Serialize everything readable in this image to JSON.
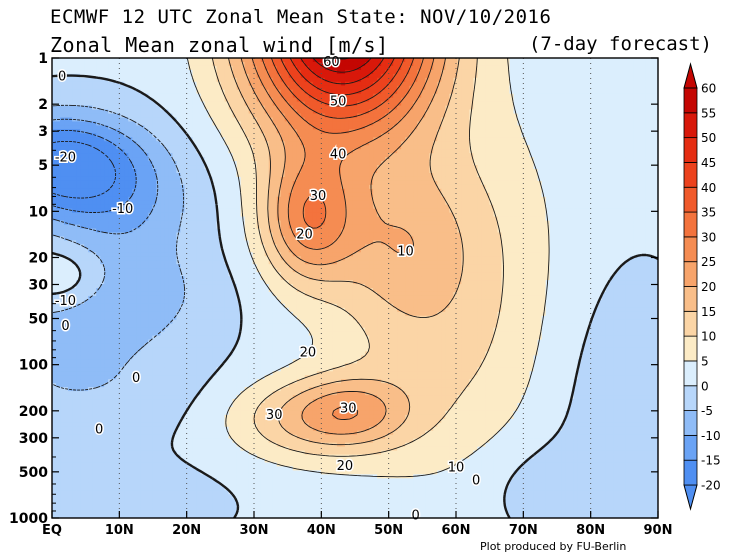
{
  "header": {
    "title_line1": "ECMWF 12 UTC Zonal Mean State: NOV/10/2016",
    "title_line2": "Zonal Mean zonal wind [m/s]",
    "forecast_label": "(7-day forecast)"
  },
  "footer": {
    "credit": "Plot produced by FU-Berlin"
  },
  "chart_data": {
    "type": "heatmap",
    "title": "Zonal Mean zonal wind [m/s]",
    "xlabel": "",
    "ylabel": "",
    "x_ticks": [
      "EQ",
      "10N",
      "20N",
      "30N",
      "40N",
      "50N",
      "60N",
      "70N",
      "80N",
      "90N"
    ],
    "x_values": [
      0,
      10,
      20,
      30,
      40,
      50,
      60,
      70,
      80,
      90
    ],
    "y_ticks": [
      "1",
      "2",
      "3",
      "5",
      "10",
      "20",
      "30",
      "50",
      "100",
      "200",
      "300",
      "500",
      "1000"
    ],
    "y_values": [
      1,
      2,
      3,
      5,
      10,
      20,
      30,
      50,
      100,
      200,
      300,
      500,
      1000
    ],
    "y_scale": "log",
    "y_inverted": true,
    "xlim": [
      0,
      90
    ],
    "ylim": [
      1,
      1000
    ],
    "grid": "dotted vertical lines at 10-degree intervals",
    "colorbar": {
      "levels": [
        -20,
        -15,
        -10,
        -5,
        0,
        5,
        10,
        15,
        20,
        25,
        30,
        35,
        40,
        45,
        50,
        55,
        60
      ],
      "labels": [
        "-20",
        "-15",
        "-10",
        "-5",
        "0",
        "5",
        "10",
        "15",
        "20",
        "25",
        "30",
        "35",
        "40",
        "45",
        "50",
        "55",
        "60"
      ],
      "colors": [
        "#4f8ff2",
        "#6aa3f5",
        "#8fbcf7",
        "#b7d6fa",
        "#dbeefd",
        "#fcebc6",
        "#fbd5a6",
        "#f9be89",
        "#f7a46b",
        "#f58c52",
        "#f3733d",
        "#f05a2b",
        "#ec421d",
        "#e52d12",
        "#d8180a",
        "#c40602"
      ],
      "position": "right"
    },
    "contour_labels": [
      {
        "text": "60",
        "lat": 41.5,
        "p": 1.05
      },
      {
        "text": "50",
        "lat": 42.5,
        "p": 1.9
      },
      {
        "text": "40",
        "lat": 42.5,
        "p": 4.2
      },
      {
        "text": "30",
        "lat": 39.5,
        "p": 7.8
      },
      {
        "text": "20",
        "lat": 37.5,
        "p": 14
      },
      {
        "text": "10",
        "lat": 52.5,
        "p": 18
      },
      {
        "text": "20",
        "lat": 38,
        "p": 82
      },
      {
        "text": "30",
        "lat": 33,
        "p": 210
      },
      {
        "text": "30",
        "lat": 44,
        "p": 190
      },
      {
        "text": "20",
        "lat": 43.5,
        "p": 450
      },
      {
        "text": "10",
        "lat": 60,
        "p": 460
      },
      {
        "text": "0",
        "lat": 63,
        "p": 560
      },
      {
        "text": "0",
        "lat": 54,
        "p": 950
      },
      {
        "text": "0",
        "lat": 1.5,
        "p": 1.3
      },
      {
        "text": "-20",
        "lat": 2,
        "p": 4.4
      },
      {
        "text": "-10",
        "lat": 10.5,
        "p": 9.5
      },
      {
        "text": "-10",
        "lat": 2,
        "p": 38
      },
      {
        "text": "0",
        "lat": 2,
        "p": 55
      },
      {
        "text": "0",
        "lat": 12.5,
        "p": 120
      },
      {
        "text": "0",
        "lat": 7,
        "p": 260
      }
    ]
  }
}
